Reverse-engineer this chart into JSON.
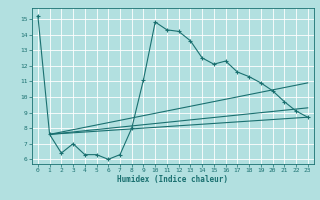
{
  "xlabel": "Humidex (Indice chaleur)",
  "background_color": "#b2e0e0",
  "grid_color": "#ffffff",
  "line_color": "#1a7070",
  "xlim": [
    -0.5,
    23.5
  ],
  "ylim": [
    5.7,
    15.7
  ],
  "xticks": [
    0,
    1,
    2,
    3,
    4,
    5,
    6,
    7,
    8,
    9,
    10,
    11,
    12,
    13,
    14,
    15,
    16,
    17,
    18,
    19,
    20,
    21,
    22,
    23
  ],
  "yticks": [
    6,
    7,
    8,
    9,
    10,
    11,
    12,
    13,
    14,
    15
  ],
  "main_line": {
    "x": [
      0,
      1,
      2,
      3,
      4,
      5,
      6,
      7,
      8,
      9,
      10,
      11,
      12,
      13,
      14,
      15,
      16,
      17,
      18,
      19,
      20,
      21,
      22,
      23
    ],
    "y": [
      15.2,
      7.6,
      6.4,
      7.0,
      6.3,
      6.3,
      6.0,
      6.3,
      8.0,
      11.1,
      14.8,
      14.3,
      14.2,
      13.6,
      12.5,
      12.1,
      12.3,
      11.6,
      11.3,
      10.9,
      10.4,
      9.7,
      9.1,
      8.7
    ]
  },
  "straight_lines": [
    {
      "x": [
        1,
        23
      ],
      "y": [
        7.6,
        8.7
      ]
    },
    {
      "x": [
        1,
        23
      ],
      "y": [
        7.6,
        9.3
      ]
    },
    {
      "x": [
        1,
        23
      ],
      "y": [
        7.6,
        10.9
      ]
    }
  ]
}
